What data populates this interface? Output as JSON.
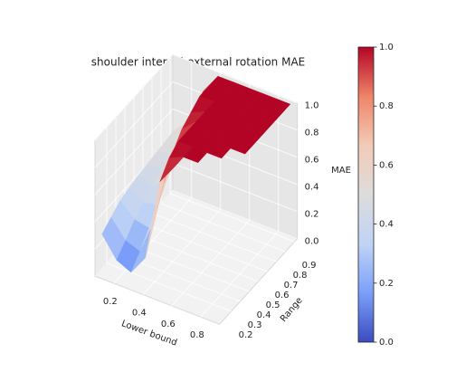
{
  "chart_data": {
    "type": "surface",
    "title": "shoulder internal-external rotation MAE",
    "xlabel": "Lower bound",
    "ylabel": "Range",
    "zlabel": "MAE",
    "x": [
      0.1,
      0.2,
      0.3,
      0.4,
      0.5,
      0.6,
      0.7,
      0.8,
      0.9
    ],
    "y": [
      0.1,
      0.2,
      0.3,
      0.4,
      0.5,
      0.6,
      0.7,
      0.8,
      0.9
    ],
    "z": [
      [
        0.3,
        0.15,
        0.1,
        0.25,
        0.85,
        1,
        null,
        null,
        null
      ],
      [
        0.35,
        0.22,
        0.18,
        0.45,
        0.95,
        1,
        1,
        null,
        null
      ],
      [
        0.4,
        0.3,
        0.28,
        0.65,
        1,
        1,
        1,
        1,
        null
      ],
      [
        0.42,
        0.35,
        0.38,
        0.8,
        1,
        1,
        1,
        1,
        1
      ],
      [
        0.44,
        0.4,
        0.5,
        0.9,
        1,
        1,
        1,
        1,
        1
      ],
      [
        0.45,
        0.45,
        0.6,
        0.95,
        1,
        1,
        1,
        1,
        1
      ],
      [
        0.46,
        0.5,
        0.7,
        1,
        1,
        1,
        1,
        1,
        1
      ],
      [
        0.47,
        0.55,
        0.8,
        1,
        1,
        1,
        1,
        1,
        1
      ],
      [
        0.48,
        0.58,
        0.85,
        1,
        1,
        1,
        1,
        1,
        1
      ]
    ],
    "xlim": [
      0.07,
      0.93
    ],
    "ylim": [
      0.07,
      0.93
    ],
    "zlim": [
      0,
      1
    ],
    "xticks": [
      0.2,
      0.4,
      0.6,
      0.8
    ],
    "yticks": [
      0.2,
      0.3,
      0.4,
      0.5,
      0.6,
      0.7,
      0.8,
      0.9
    ],
    "zticks": [
      {
        "value": 0,
        "label": "0.0"
      },
      0.2,
      0.4,
      0.6,
      0.8,
      {
        "value": 1,
        "label": "1.0"
      }
    ],
    "colormap": [
      "#3b4cc0",
      "#7b9ff9",
      "#c0d4f5",
      "#dddcdc",
      "#f2cbb7",
      "#ee8468",
      "#b40426"
    ],
    "clim": [
      0,
      1
    ],
    "colorbar_ticks": [
      {
        "value": 0,
        "label": "0.0"
      },
      0.2,
      0.4,
      0.6,
      0.8,
      {
        "value": 1,
        "label": "1.0"
      }
    ],
    "grid": true
  }
}
